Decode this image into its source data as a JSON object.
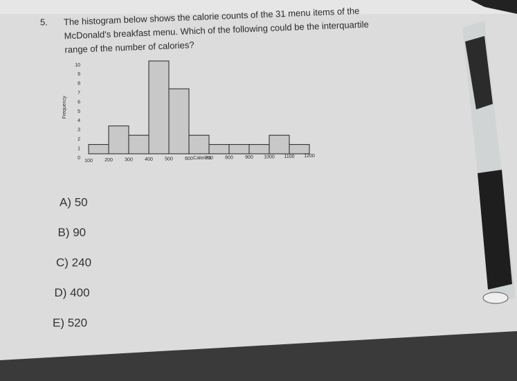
{
  "question": {
    "number": "5.",
    "lines": [
      "The histogram below shows the calorie counts of the 31 menu items of the",
      "McDonald's breakfast menu. Which of the following could be the interquartile",
      "range of the number of calories?"
    ]
  },
  "chart_data": {
    "type": "histogram",
    "x_label": "Calories",
    "y_label": "Frequency",
    "bins": [
      100,
      200,
      300,
      400,
      500,
      600,
      700,
      800,
      900,
      1000,
      1100,
      1200
    ],
    "counts": [
      1,
      3,
      2,
      10,
      7,
      2,
      1,
      1,
      1,
      2,
      1
    ],
    "color": "#c8c8c8",
    "xlim": [
      100,
      1200
    ],
    "xticks": [
      100,
      200,
      300,
      400,
      500,
      600,
      700,
      800,
      900,
      1000,
      1100,
      1200
    ],
    "ylim": [
      0,
      10
    ],
    "yticks": [
      0,
      1,
      2,
      3,
      4,
      5,
      6,
      7,
      8,
      9,
      10
    ]
  },
  "options": [
    "A) 50",
    "B) 90",
    "C) 240",
    "D) 400",
    "E) 520"
  ]
}
